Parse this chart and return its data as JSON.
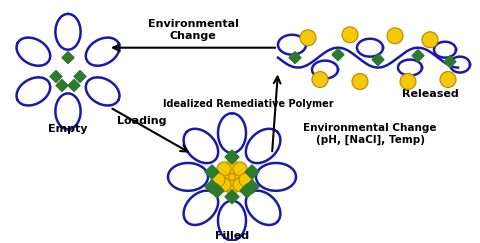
{
  "background_color": "#ffffff",
  "blue_color": "#1a1aaa",
  "green_diamond_color": "#2d7a2d",
  "yellow_color": "#f5c800",
  "yellow_edge": "#b8860b",
  "arrow_color": "#000000",
  "labels": {
    "empty": "Empty",
    "filled": "Filled",
    "released": "Released",
    "loading": "Loading",
    "env_change_top": "Environmental\nChange",
    "idealized": "Idealized Remediative Polymer",
    "env_change_bottom": "Environmental Change\n(pH, [NaCl], Temp)"
  },
  "figsize": [
    4.8,
    2.43
  ],
  "dpi": 100
}
